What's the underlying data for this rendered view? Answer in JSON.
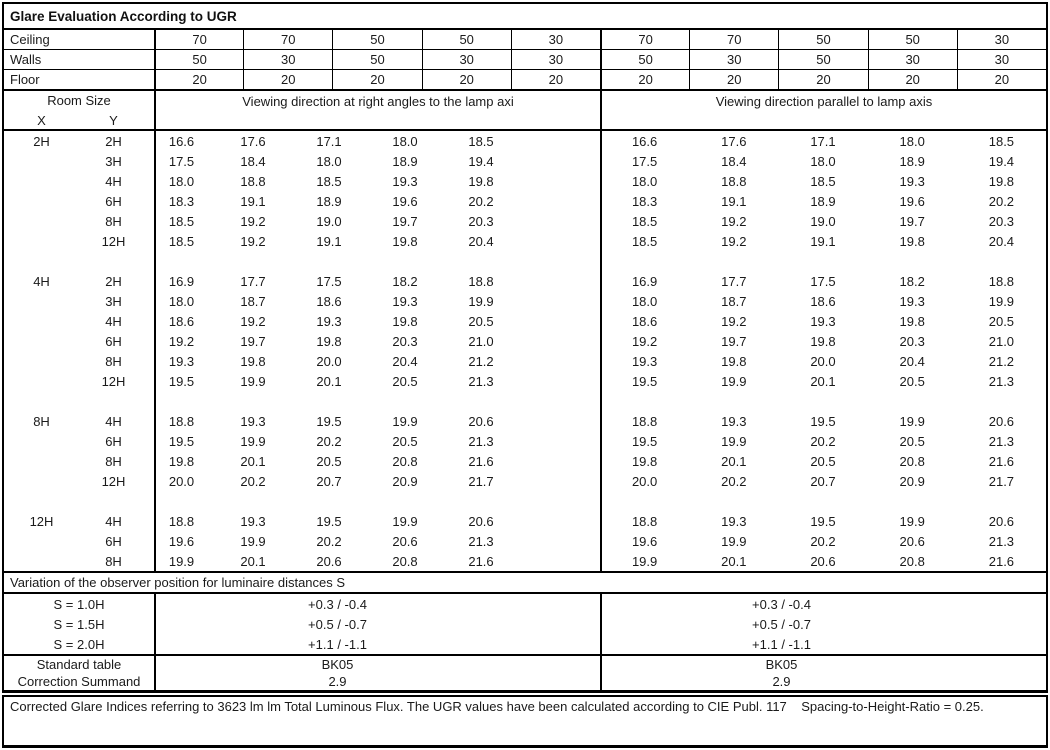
{
  "title": "Glare Evaluation According to UGR",
  "surface_rows": [
    {
      "label": "Ceiling",
      "values": [
        "70",
        "70",
        "50",
        "50",
        "30",
        "70",
        "70",
        "50",
        "50",
        "30"
      ]
    },
    {
      "label": "Walls",
      "values": [
        "50",
        "30",
        "50",
        "30",
        "30",
        "50",
        "30",
        "50",
        "30",
        "30"
      ]
    },
    {
      "label": "Floor",
      "values": [
        "20",
        "20",
        "20",
        "20",
        "20",
        "20",
        "20",
        "20",
        "20",
        "20"
      ]
    }
  ],
  "header": {
    "room_size": "Room Size",
    "x": "X",
    "y": "Y",
    "left_heading": "Viewing direction at right angles to the lamp axi",
    "right_heading": "Viewing direction parallel to lamp axis"
  },
  "ugr_rows": [
    {
      "x": "2H",
      "y": "2H",
      "left": [
        "16.6",
        "17.6",
        "17.1",
        "18.0",
        "18.5"
      ],
      "right": [
        "16.6",
        "17.6",
        "17.1",
        "18.0",
        "18.5"
      ]
    },
    {
      "x": "",
      "y": "3H",
      "left": [
        "17.5",
        "18.4",
        "18.0",
        "18.9",
        "19.4"
      ],
      "right": [
        "17.5",
        "18.4",
        "18.0",
        "18.9",
        "19.4"
      ]
    },
    {
      "x": "",
      "y": "4H",
      "left": [
        "18.0",
        "18.8",
        "18.5",
        "19.3",
        "19.8"
      ],
      "right": [
        "18.0",
        "18.8",
        "18.5",
        "19.3",
        "19.8"
      ]
    },
    {
      "x": "",
      "y": "6H",
      "left": [
        "18.3",
        "19.1",
        "18.9",
        "19.6",
        "20.2"
      ],
      "right": [
        "18.3",
        "19.1",
        "18.9",
        "19.6",
        "20.2"
      ]
    },
    {
      "x": "",
      "y": "8H",
      "left": [
        "18.5",
        "19.2",
        "19.0",
        "19.7",
        "20.3"
      ],
      "right": [
        "18.5",
        "19.2",
        "19.0",
        "19.7",
        "20.3"
      ]
    },
    {
      "x": "",
      "y": "12H",
      "left": [
        "18.5",
        "19.2",
        "19.1",
        "19.8",
        "20.4"
      ],
      "right": [
        "18.5",
        "19.2",
        "19.1",
        "19.8",
        "20.4"
      ]
    },
    {
      "blank": true
    },
    {
      "x": "4H",
      "y": "2H",
      "left": [
        "16.9",
        "17.7",
        "17.5",
        "18.2",
        "18.8"
      ],
      "right": [
        "16.9",
        "17.7",
        "17.5",
        "18.2",
        "18.8"
      ]
    },
    {
      "x": "",
      "y": "3H",
      "left": [
        "18.0",
        "18.7",
        "18.6",
        "19.3",
        "19.9"
      ],
      "right": [
        "18.0",
        "18.7",
        "18.6",
        "19.3",
        "19.9"
      ]
    },
    {
      "x": "",
      "y": "4H",
      "left": [
        "18.6",
        "19.2",
        "19.3",
        "19.8",
        "20.5"
      ],
      "right": [
        "18.6",
        "19.2",
        "19.3",
        "19.8",
        "20.5"
      ]
    },
    {
      "x": "",
      "y": "6H",
      "left": [
        "19.2",
        "19.7",
        "19.8",
        "20.3",
        "21.0"
      ],
      "right": [
        "19.2",
        "19.7",
        "19.8",
        "20.3",
        "21.0"
      ]
    },
    {
      "x": "",
      "y": "8H",
      "left": [
        "19.3",
        "19.8",
        "20.0",
        "20.4",
        "21.2"
      ],
      "right": [
        "19.3",
        "19.8",
        "20.0",
        "20.4",
        "21.2"
      ]
    },
    {
      "x": "",
      "y": "12H",
      "left": [
        "19.5",
        "19.9",
        "20.1",
        "20.5",
        "21.3"
      ],
      "right": [
        "19.5",
        "19.9",
        "20.1",
        "20.5",
        "21.3"
      ]
    },
    {
      "blank": true
    },
    {
      "x": "8H",
      "y": "4H",
      "left": [
        "18.8",
        "19.3",
        "19.5",
        "19.9",
        "20.6"
      ],
      "right": [
        "18.8",
        "19.3",
        "19.5",
        "19.9",
        "20.6"
      ]
    },
    {
      "x": "",
      "y": "6H",
      "left": [
        "19.5",
        "19.9",
        "20.2",
        "20.5",
        "21.3"
      ],
      "right": [
        "19.5",
        "19.9",
        "20.2",
        "20.5",
        "21.3"
      ]
    },
    {
      "x": "",
      "y": "8H",
      "left": [
        "19.8",
        "20.1",
        "20.5",
        "20.8",
        "21.6"
      ],
      "right": [
        "19.8",
        "20.1",
        "20.5",
        "20.8",
        "21.6"
      ]
    },
    {
      "x": "",
      "y": "12H",
      "left": [
        "20.0",
        "20.2",
        "20.7",
        "20.9",
        "21.7"
      ],
      "right": [
        "20.0",
        "20.2",
        "20.7",
        "20.9",
        "21.7"
      ]
    },
    {
      "blank": true
    },
    {
      "x": "12H",
      "y": "4H",
      "left": [
        "18.8",
        "19.3",
        "19.5",
        "19.9",
        "20.6"
      ],
      "right": [
        "18.8",
        "19.3",
        "19.5",
        "19.9",
        "20.6"
      ]
    },
    {
      "x": "",
      "y": "6H",
      "left": [
        "19.6",
        "19.9",
        "20.2",
        "20.6",
        "21.3"
      ],
      "right": [
        "19.6",
        "19.9",
        "20.2",
        "20.6",
        "21.3"
      ]
    },
    {
      "x": "",
      "y": "8H",
      "left": [
        "19.9",
        "20.1",
        "20.6",
        "20.8",
        "21.6"
      ],
      "right": [
        "19.9",
        "20.1",
        "20.6",
        "20.8",
        "21.6"
      ]
    }
  ],
  "variation_heading": "Variation of the observer position for luminaire distances S",
  "variation_rows": [
    {
      "label": "S = 1.0H",
      "left": "+0.3 / -0.4",
      "right": "+0.3 / -0.4"
    },
    {
      "label": "S = 1.5H",
      "left": "+0.5 / -0.7",
      "right": "+0.5 / -0.7"
    },
    {
      "label": "S = 2.0H",
      "left": "+1.1 / -1.1",
      "right": "+1.1 / -1.1"
    }
  ],
  "summary_rows": [
    {
      "label": "Standard table",
      "left": "BK05",
      "right": "BK05"
    },
    {
      "label": "Correction Summand",
      "left": "2.9",
      "right": "2.9"
    }
  ],
  "footer": "Corrected Glare Indices referring to 3623 lm lm Total Luminous Flux. The UGR values have been calculated according to CIE Publ. 117    Spacing-to-Height-Ratio = 0.25.",
  "colors": {
    "border": "#000000",
    "text": "#1a1a1a",
    "background": "#ffffff"
  }
}
